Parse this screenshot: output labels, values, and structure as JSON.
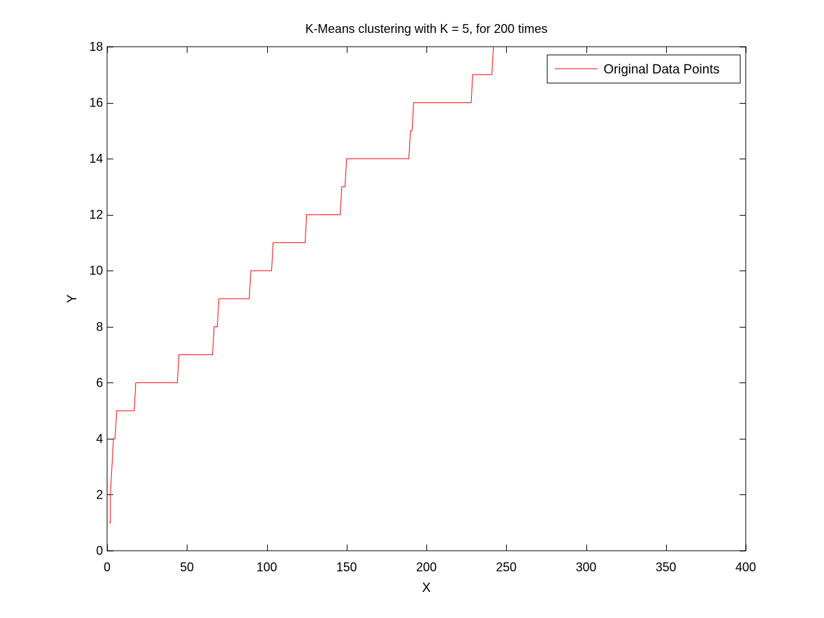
{
  "chart_data": {
    "type": "line",
    "title": "K-Means clustering with K = 5, for 200 times",
    "xlabel": "X",
    "ylabel": "Y",
    "xlim": [
      0,
      400
    ],
    "ylim": [
      0,
      18
    ],
    "xticks": [
      0,
      50,
      100,
      150,
      200,
      250,
      300,
      350,
      400
    ],
    "yticks": [
      0,
      2,
      4,
      6,
      8,
      10,
      12,
      14,
      16,
      18
    ],
    "grid": false,
    "legend_position": "top-right",
    "series": [
      {
        "name": "Original Data Points",
        "color": "#ff0000",
        "x": [
          1,
          2,
          2,
          3,
          4,
          5,
          6,
          7,
          7,
          17,
          18,
          18,
          44,
          45,
          45,
          66,
          67,
          68,
          69,
          70,
          70,
          89,
          90,
          91,
          103,
          104,
          104,
          124,
          125,
          125,
          146,
          147,
          148,
          149,
          150,
          150,
          189,
          190,
          191,
          192,
          193,
          228,
          229,
          229,
          241,
          242
        ],
        "y": [
          1,
          1,
          2,
          3,
          4,
          4,
          5,
          5,
          5,
          5,
          6,
          6,
          6,
          7,
          7,
          7,
          8,
          8,
          8,
          9,
          9,
          9,
          10,
          10,
          10,
          11,
          11,
          11,
          12,
          12,
          12,
          13,
          13,
          13,
          14,
          14,
          14,
          15,
          15,
          16,
          16,
          16,
          17,
          17,
          17,
          18
        ]
      }
    ]
  }
}
